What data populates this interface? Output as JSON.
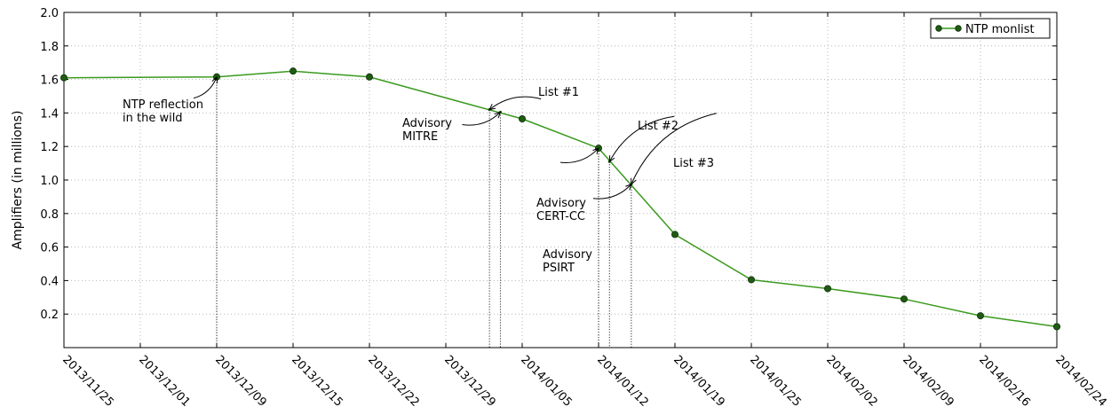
{
  "chart_data": {
    "type": "line",
    "ylabel": "Amplifiers (in millions)",
    "ylim": [
      0,
      2.0
    ],
    "yticks": [
      "0.2",
      "0.4",
      "0.6",
      "0.8",
      "1.0",
      "1.2",
      "1.4",
      "1.6",
      "1.8",
      "2.0"
    ],
    "xlim": [
      "2013-11-25",
      "2014-02-24"
    ],
    "xtick_labels": [
      "2013/11/25",
      "2013/12/01",
      "2013/12/09",
      "2013/12/15",
      "2013/12/22",
      "2013/12/29",
      "2014/01/05",
      "2014/01/12",
      "2014/01/19",
      "2014/01/25",
      "2014/02/02",
      "2014/02/09",
      "2014/02/16",
      "2014/02/24"
    ],
    "grid": true,
    "legend_position": "top-right",
    "series": [
      {
        "name": "NTP monlist",
        "color": "#3a9a1e",
        "marker_color": "#1f5c12",
        "x": [
          "2013-11-25",
          "2013-12-09",
          "2013-12-16",
          "2013-12-23",
          "2014-01-06",
          "2014-01-13",
          "2014-01-20",
          "2014-01-27",
          "2014-02-03",
          "2014-02-10",
          "2014-02-17",
          "2014-02-24"
        ],
        "values": [
          1.61,
          1.615,
          1.65,
          1.615,
          1.365,
          1.19,
          0.675,
          0.405,
          0.352,
          0.29,
          0.19,
          0.125
        ]
      }
    ],
    "annotations": [
      {
        "id": "ntp-reflection",
        "lines": [
          "NTP reflection",
          "in the wild"
        ],
        "x": "2013-12-09",
        "y": 1.615,
        "marker": "none"
      },
      {
        "id": "advisory-mitre",
        "lines": [
          "Advisory",
          "MITRE"
        ],
        "x": "2014-01-03",
        "y": 1.42,
        "marker": "small"
      },
      {
        "id": "list-1",
        "lines": [
          "List #1"
        ],
        "x": "2014-01-04",
        "y": 1.405,
        "marker": "small"
      },
      {
        "id": "list-2",
        "lines": [
          "List #2"
        ],
        "x": "2014-01-13",
        "y": 1.19,
        "marker": "none"
      },
      {
        "id": "advisory-cert",
        "lines": [
          "Advisory",
          "CERT-CC"
        ],
        "x": "2014-01-14",
        "y": 1.11,
        "marker": "small"
      },
      {
        "id": "list-3",
        "lines": [
          "List #3"
        ],
        "x": "2014-01-16",
        "y": 0.975,
        "marker": "small"
      },
      {
        "id": "advisory-psirt",
        "lines": [
          "Advisory",
          "PSIRT"
        ],
        "x": "2014-01-16",
        "y": 0.975,
        "marker": "none"
      }
    ]
  }
}
